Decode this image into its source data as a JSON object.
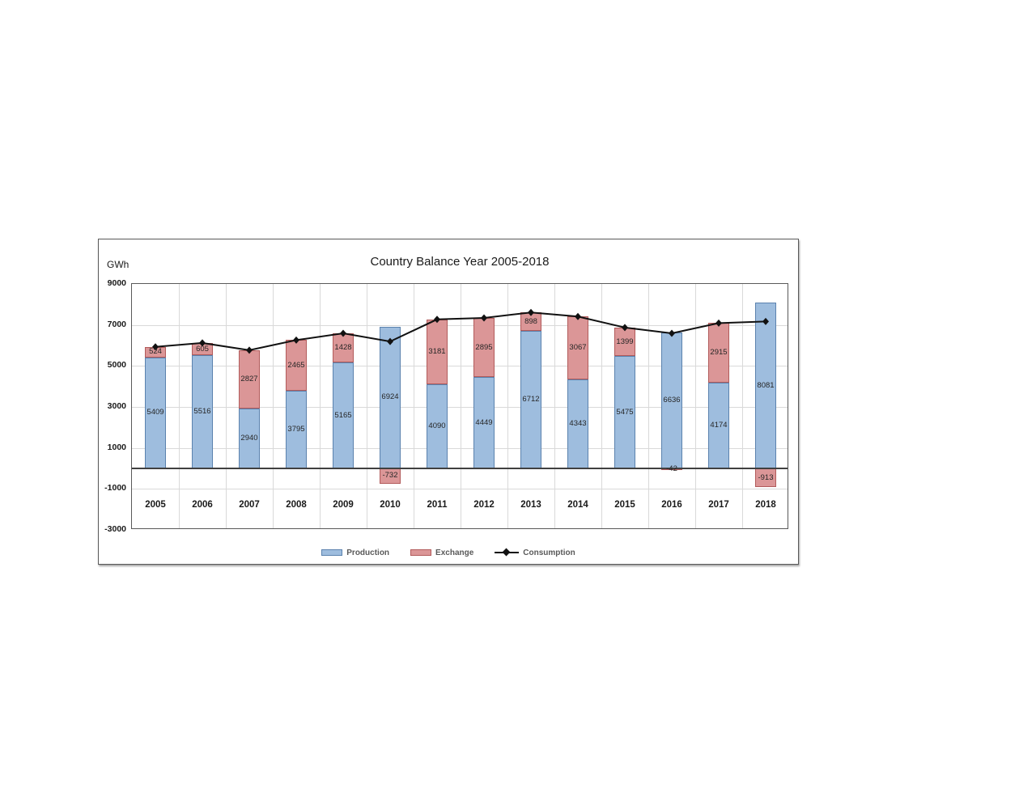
{
  "chart_data": {
    "type": "combo-stacked-bar-line",
    "title": "Country Balance Year 2005-2018",
    "ylabel": "GWh",
    "categories": [
      "2005",
      "2006",
      "2007",
      "2008",
      "2009",
      "2010",
      "2011",
      "2012",
      "2013",
      "2014",
      "2015",
      "2016",
      "2017",
      "2018"
    ],
    "series": [
      {
        "name": "Production",
        "type": "bar",
        "color": "#9EBDDE",
        "border_color": "#5B82AE",
        "values": [
          5409,
          5516,
          2940,
          3795,
          5165,
          6924,
          4090,
          4449,
          6712,
          4343,
          5475,
          6636,
          4174,
          8081
        ]
      },
      {
        "name": "Exchange",
        "type": "bar",
        "color": "#DB9697",
        "border_color": "#B25B5B",
        "values": [
          524,
          605,
          2827,
          2465,
          1428,
          -732,
          3181,
          2895,
          898,
          3067,
          1399,
          -42,
          2915,
          -913
        ]
      },
      {
        "name": "Consumption",
        "type": "line",
        "color": "#111111",
        "values": [
          5933,
          6121,
          5767,
          6260,
          6593,
          6192,
          7271,
          7344,
          7610,
          7410,
          6874,
          6594,
          7089,
          7168
        ]
      }
    ],
    "ylim": [
      -3000,
      9000
    ],
    "yticks": [
      9000,
      7000,
      5000,
      3000,
      1000,
      -1000,
      -3000
    ],
    "grid": true,
    "legend_position": "bottom",
    "bar_labels_shown": true,
    "line_labels_shown": false,
    "colors": {
      "gridline": "#d9d9d9",
      "axis": "#595959",
      "zero_line": "#404040",
      "text": "#262626"
    }
  }
}
